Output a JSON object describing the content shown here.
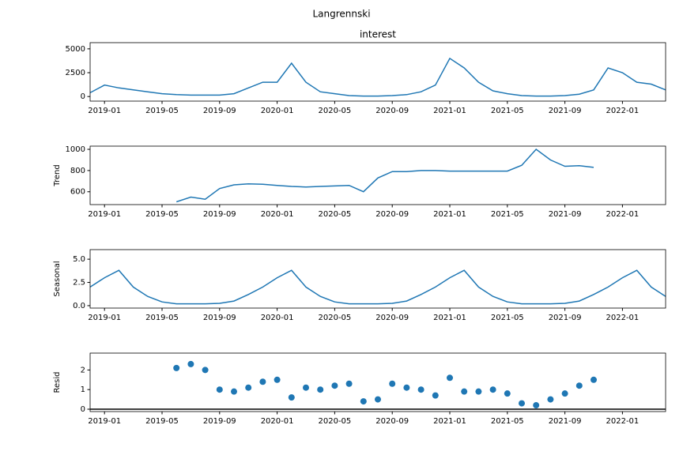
{
  "title": "Langrennski",
  "chart_data": [
    {
      "type": "line",
      "title": "interest",
      "color": "#1f77b4",
      "x": [
        "2018-12",
        "2019-01",
        "2019-02",
        "2019-03",
        "2019-04",
        "2019-05",
        "2019-06",
        "2019-07",
        "2019-08",
        "2019-09",
        "2019-10",
        "2019-11",
        "2019-12",
        "2020-01",
        "2020-02",
        "2020-03",
        "2020-04",
        "2020-05",
        "2020-06",
        "2020-07",
        "2020-08",
        "2020-09",
        "2020-10",
        "2020-11",
        "2020-12",
        "2021-01",
        "2021-02",
        "2021-03",
        "2021-04",
        "2021-05",
        "2021-06",
        "2021-07",
        "2021-08",
        "2021-09",
        "2021-10",
        "2021-11",
        "2021-12",
        "2022-01",
        "2022-02",
        "2022-03",
        "2022-04"
      ],
      "values": [
        400,
        1200,
        900,
        700,
        500,
        300,
        200,
        150,
        150,
        150,
        300,
        900,
        1500,
        1500,
        3500,
        1500,
        500,
        300,
        100,
        50,
        50,
        100,
        200,
        500,
        1200,
        4000,
        3000,
        1500,
        600,
        300,
        100,
        50,
        50,
        100,
        250,
        700,
        3000,
        2500,
        1500,
        1300,
        700
      ],
      "xlim": [
        "2018-12",
        "2022-04"
      ],
      "xticks": [
        "2019-01",
        "2019-05",
        "2019-09",
        "2020-01",
        "2020-05",
        "2020-09",
        "2021-01",
        "2021-05",
        "2021-09",
        "2022-01"
      ],
      "ylim": [
        -480,
        5650
      ],
      "yticks": [
        0,
        2500,
        5000
      ]
    },
    {
      "type": "line",
      "ylabel": "Trend",
      "color": "#1f77b4",
      "x": [
        "2018-12",
        "2019-01",
        "2019-02",
        "2019-03",
        "2019-04",
        "2019-05",
        "2019-06",
        "2019-07",
        "2019-08",
        "2019-09",
        "2019-10",
        "2019-11",
        "2019-12",
        "2020-01",
        "2020-02",
        "2020-03",
        "2020-04",
        "2020-05",
        "2020-06",
        "2020-07",
        "2020-08",
        "2020-09",
        "2020-10",
        "2020-11",
        "2020-12",
        "2021-01",
        "2021-02",
        "2021-03",
        "2021-04",
        "2021-05",
        "2021-06",
        "2021-07",
        "2021-08",
        "2021-09",
        "2021-10",
        "2021-11",
        "2021-12",
        "2022-01",
        "2022-02",
        "2022-03",
        "2022-04"
      ],
      "values": [
        null,
        null,
        null,
        null,
        null,
        null,
        505,
        550,
        530,
        630,
        665,
        675,
        670,
        660,
        650,
        645,
        650,
        655,
        660,
        600,
        730,
        790,
        790,
        800,
        800,
        795,
        795,
        795,
        795,
        795,
        850,
        1000,
        900,
        840,
        845,
        830,
        null,
        null,
        null,
        null,
        null
      ],
      "xlim": [
        "2018-12",
        "2022-04"
      ],
      "xticks": [
        "2019-01",
        "2019-05",
        "2019-09",
        "2020-01",
        "2020-05",
        "2020-09",
        "2021-01",
        "2021-05",
        "2021-09",
        "2022-01"
      ],
      "ylim": [
        479,
        1030
      ],
      "yticks": [
        600,
        800,
        1000
      ]
    },
    {
      "type": "line",
      "ylabel": "Seasonal",
      "color": "#1f77b4",
      "x": [
        "2018-12",
        "2019-01",
        "2019-02",
        "2019-03",
        "2019-04",
        "2019-05",
        "2019-06",
        "2019-07",
        "2019-08",
        "2019-09",
        "2019-10",
        "2019-11",
        "2019-12",
        "2020-01",
        "2020-02",
        "2020-03",
        "2020-04",
        "2020-05",
        "2020-06",
        "2020-07",
        "2020-08",
        "2020-09",
        "2020-10",
        "2020-11",
        "2020-12",
        "2021-01",
        "2021-02",
        "2021-03",
        "2021-04",
        "2021-05",
        "2021-06",
        "2021-07",
        "2021-08",
        "2021-09",
        "2021-10",
        "2021-11",
        "2021-12",
        "2022-01",
        "2022-02",
        "2022-03",
        "2022-04"
      ],
      "values": [
        2.0,
        3.0,
        3.8,
        2.0,
        1.0,
        0.4,
        0.2,
        0.2,
        0.2,
        0.25,
        0.5,
        1.2,
        2.0,
        3.0,
        3.8,
        2.0,
        1.0,
        0.4,
        0.2,
        0.2,
        0.2,
        0.25,
        0.5,
        1.2,
        2.0,
        3.0,
        3.8,
        2.0,
        1.0,
        0.4,
        0.2,
        0.2,
        0.2,
        0.25,
        0.5,
        1.2,
        2.0,
        3.0,
        3.8,
        2.0,
        1.0
      ],
      "xlim": [
        "2018-12",
        "2022-04"
      ],
      "xticks": [
        "2019-01",
        "2019-05",
        "2019-09",
        "2020-01",
        "2020-05",
        "2020-09",
        "2021-01",
        "2021-05",
        "2021-09",
        "2022-01"
      ],
      "ylim": [
        -0.26,
        6.03
      ],
      "yticks": [
        {
          "value": 0,
          "label": "0.0"
        },
        {
          "value": 2.5,
          "label": "2.5"
        },
        {
          "value": 5,
          "label": "5.0"
        }
      ]
    },
    {
      "type": "scatter",
      "ylabel": "Resid",
      "color": "#1f77b4",
      "hline": 0,
      "x": [
        "2018-12",
        "2019-01",
        "2019-02",
        "2019-03",
        "2019-04",
        "2019-05",
        "2019-06",
        "2019-07",
        "2019-08",
        "2019-09",
        "2019-10",
        "2019-11",
        "2019-12",
        "2020-01",
        "2020-02",
        "2020-03",
        "2020-04",
        "2020-05",
        "2020-06",
        "2020-07",
        "2020-08",
        "2020-09",
        "2020-10",
        "2020-11",
        "2020-12",
        "2021-01",
        "2021-02",
        "2021-03",
        "2021-04",
        "2021-05",
        "2021-06",
        "2021-07",
        "2021-08",
        "2021-09",
        "2021-10",
        "2021-11",
        "2021-12",
        "2022-01",
        "2022-02",
        "2022-03",
        "2022-04"
      ],
      "values": [
        null,
        null,
        null,
        null,
        null,
        null,
        2.1,
        2.3,
        2.0,
        1.0,
        0.9,
        1.1,
        1.4,
        1.5,
        0.6,
        1.1,
        1.0,
        1.2,
        1.3,
        0.4,
        0.5,
        1.3,
        1.1,
        1.0,
        0.7,
        1.6,
        0.9,
        0.9,
        1.0,
        0.8,
        0.3,
        0.2,
        0.5,
        0.8,
        1.2,
        1.5,
        null,
        null,
        null,
        null,
        null
      ],
      "xlim": [
        "2018-12",
        "2022-04"
      ],
      "xticks": [
        "2019-01",
        "2019-05",
        "2019-09",
        "2020-01",
        "2020-05",
        "2020-09",
        "2021-01",
        "2021-05",
        "2021-09",
        "2022-01"
      ],
      "ylim": [
        -0.12,
        2.86
      ],
      "yticks": [
        0,
        1,
        2
      ]
    }
  ]
}
